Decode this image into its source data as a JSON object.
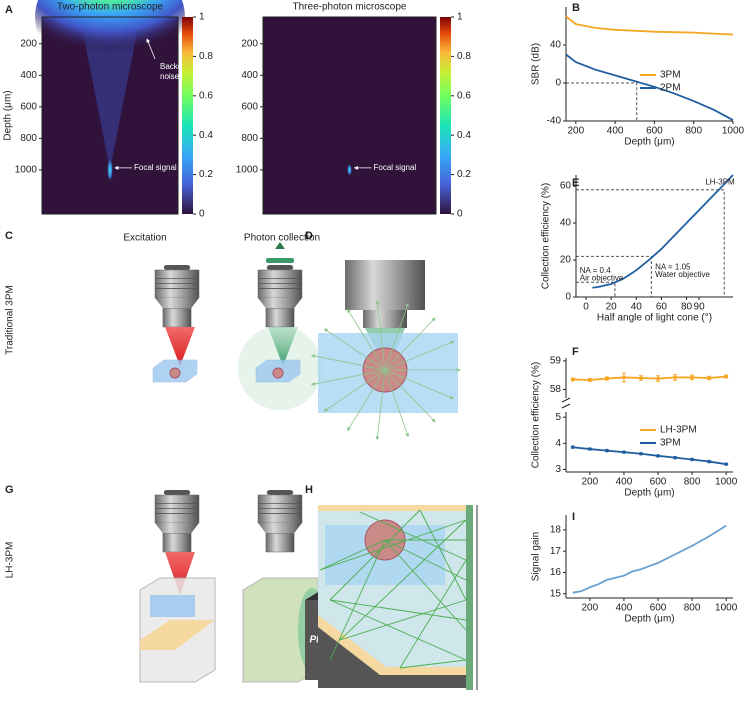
{
  "panel_labels": [
    "A",
    "B",
    "C",
    "D",
    "E",
    "F",
    "G",
    "H",
    "I"
  ],
  "illustrations": {
    "excitation": "Excitation",
    "photon_collection": "Photon collection",
    "traditional": "Traditional 3PM",
    "lh": "LH-3PM",
    "pmt": "PMT"
  },
  "chart_data": [
    {
      "type": "heatmap",
      "title": "Two-photon microscope",
      "ylabel": "Depth (μm)",
      "ylim": [
        30,
        1280
      ],
      "yticks": [
        200,
        400,
        600,
        800,
        1000
      ],
      "background_noise": true,
      "focal_depth": 1000,
      "annotations": [
        "Background noise",
        "Focal signal"
      ],
      "colorbar": {
        "lim": [
          0,
          1
        ],
        "ticks": [
          0,
          0.2,
          0.4,
          0.6,
          0.8,
          1
        ]
      }
    },
    {
      "type": "heatmap",
      "title": "Three-photon microscope",
      "ylim": [
        30,
        1280
      ],
      "yticks": [
        200,
        400,
        600,
        800,
        1000
      ],
      "background_noise": false,
      "focal_depth": 1000,
      "annotations": [
        "Focal signal"
      ],
      "colorbar": {
        "lim": [
          0,
          1
        ],
        "ticks": [
          0,
          0.2,
          0.4,
          0.6,
          0.8,
          1
        ]
      }
    },
    {
      "type": "line",
      "xlabel": "Depth (μm)",
      "ylabel": "SBR (dB)",
      "xlim": [
        150,
        1000
      ],
      "ylim": [
        -40,
        80
      ],
      "xticks": [
        200,
        400,
        600,
        800,
        1000
      ],
      "yticks": [
        -40,
        0,
        40
      ],
      "x": [
        150,
        200,
        300,
        400,
        500,
        600,
        700,
        800,
        900,
        1000
      ],
      "series": [
        {
          "name": "3PM",
          "color": "#f5a623",
          "values": [
            70,
            62,
            58,
            56,
            55,
            54,
            53.5,
            53,
            52,
            51
          ]
        },
        {
          "name": "2PM",
          "color": "#1f5fa0",
          "values": [
            30,
            22,
            14,
            8,
            2,
            -4,
            -11,
            -19,
            -28,
            -39
          ]
        }
      ],
      "guides": [
        {
          "x": 510,
          "y": 0
        }
      ]
    },
    {
      "type": "line",
      "xlabel": "Half angle of light cone (°)",
      "ylabel": "Collection efficiency (%)",
      "xlim": [
        -8,
        117
      ],
      "ylim": [
        0,
        66
      ],
      "xticks": [
        0,
        20,
        40,
        60,
        80,
        90
      ],
      "yticks": [
        0,
        20,
        40,
        60
      ],
      "x": [
        5,
        10,
        20,
        30,
        40,
        50,
        60,
        70,
        80,
        90,
        100,
        110,
        117
      ],
      "series": [
        {
          "color": "#1f5fa0",
          "values": [
            5,
            5.5,
            7,
            10,
            14.5,
            20,
            26,
            33,
            40,
            47,
            54,
            61,
            66
          ]
        }
      ],
      "guides": [
        {
          "x": 23,
          "y": 8
        },
        {
          "x": 52,
          "y": 22
        },
        {
          "x": 110,
          "y": 58
        }
      ],
      "annotations": [
        "LH-3PM",
        "NA = 0.4",
        "Air objective",
        "NA = 1.05",
        "Water objective"
      ]
    },
    {
      "type": "broken_line",
      "xlabel": "Depth (μm)",
      "ylabel": "Collection efficiency (%)",
      "xlim": [
        60,
        1040
      ],
      "xticks": [
        200,
        400,
        600,
        800,
        1000
      ],
      "x": [
        100,
        200,
        300,
        400,
        500,
        600,
        700,
        800,
        900,
        1000
      ],
      "upper": {
        "ylim": [
          57.7,
          59.1
        ],
        "yticks": [
          58,
          59
        ]
      },
      "lower": {
        "ylim": [
          2.9,
          5.2
        ],
        "yticks": [
          3,
          4,
          5
        ]
      },
      "series": [
        {
          "name": "LH-3PM",
          "color": "#f5a623",
          "segment": "upper",
          "values": [
            58.35,
            58.33,
            58.38,
            58.42,
            58.4,
            58.38,
            58.42,
            58.42,
            58.4,
            58.45
          ],
          "errors": [
            0.05,
            0.05,
            0.06,
            0.15,
            0.08,
            0.1,
            0.1,
            0.08,
            0.06,
            0.05
          ]
        },
        {
          "name": "3PM",
          "color": "#1f5fa0",
          "segment": "lower",
          "values": [
            3.85,
            3.78,
            3.72,
            3.66,
            3.6,
            3.52,
            3.45,
            3.38,
            3.3,
            3.2
          ],
          "errors": [
            0.03,
            0.03,
            0.03,
            0.03,
            0.03,
            0.03,
            0.03,
            0.03,
            0.03,
            0.03
          ]
        }
      ]
    },
    {
      "type": "line",
      "xlabel": "Depth (μm)",
      "ylabel": "Signal gain",
      "xlim": [
        60,
        1040
      ],
      "ylim": [
        14.8,
        18.7
      ],
      "xticks": [
        200,
        400,
        600,
        800,
        1000
      ],
      "yticks": [
        15,
        16,
        17,
        18
      ],
      "x": [
        100,
        150,
        200,
        250,
        300,
        350,
        400,
        450,
        500,
        550,
        600,
        700,
        800,
        900,
        1000
      ],
      "series": [
        {
          "color": "#6aa0d0",
          "values": [
            15.05,
            15.12,
            15.3,
            15.45,
            15.65,
            15.75,
            15.85,
            16.05,
            16.15,
            16.3,
            16.45,
            16.85,
            17.25,
            17.7,
            18.2
          ]
        }
      ]
    }
  ]
}
